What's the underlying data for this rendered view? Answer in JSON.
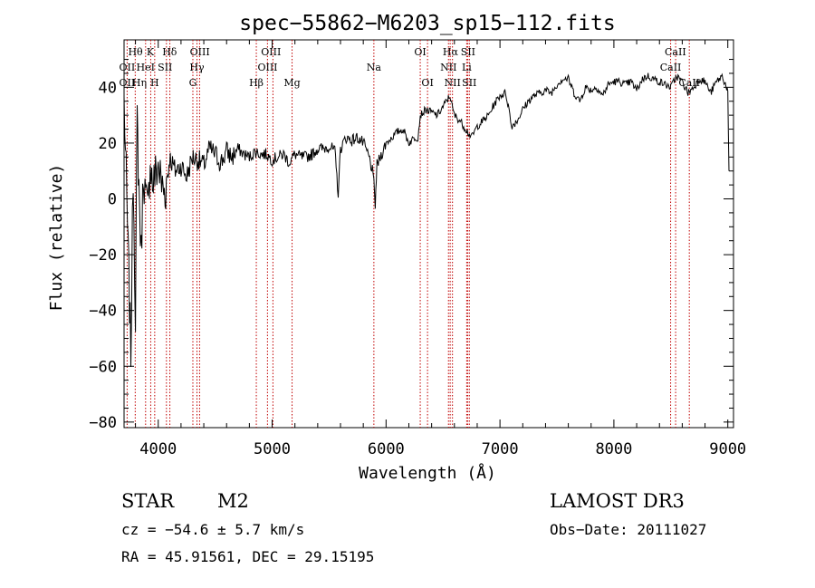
{
  "chart_data": {
    "type": "line",
    "title": "spec−55862−M6203_sp15−112.fits",
    "xlabel": "Wavelength (Å)",
    "ylabel": "Flux (relative)",
    "xlim": [
      3700,
      9050
    ],
    "ylim": [
      -82,
      57
    ],
    "xticks": [
      4000,
      5000,
      6000,
      7000,
      8000,
      9000
    ],
    "yticks": [
      -80,
      -60,
      -40,
      -20,
      0,
      20,
      40
    ],
    "grid": false,
    "series": [
      {
        "color": "#000000",
        "x": [
          3700,
          3730,
          3760,
          3780,
          3800,
          3815,
          3830,
          3850,
          3870,
          3890,
          3910,
          3930,
          3950,
          3970,
          4000,
          4030,
          4060,
          4100,
          4150,
          4200,
          4250,
          4300,
          4350,
          4400,
          4450,
          4500,
          4550,
          4600,
          4650,
          4700,
          4750,
          4800,
          4850,
          4900,
          4950,
          5000,
          5050,
          5100,
          5150,
          5200,
          5250,
          5300,
          5350,
          5400,
          5450,
          5500,
          5550,
          5580,
          5600,
          5650,
          5700,
          5750,
          5800,
          5850,
          5880,
          5893,
          5905,
          5920,
          5950,
          6000,
          6050,
          6100,
          6150,
          6200,
          6250,
          6280,
          6300,
          6350,
          6400,
          6450,
          6500,
          6530,
          6563,
          6580,
          6600,
          6650,
          6700,
          6750,
          6800,
          6850,
          6900,
          6950,
          7000,
          7050,
          7080,
          7100,
          7150,
          7200,
          7250,
          7300,
          7350,
          7400,
          7450,
          7500,
          7550,
          7600,
          7650,
          7700,
          7750,
          7800,
          7850,
          7900,
          7950,
          8000,
          8050,
          8100,
          8150,
          8200,
          8250,
          8300,
          8350,
          8400,
          8450,
          8500,
          8550,
          8600,
          8650,
          8700,
          8750,
          8800,
          8850,
          8900,
          8950,
          8990,
          9000,
          9010
        ],
        "y": [
          35,
          -10,
          -55,
          10,
          -40,
          28,
          5,
          -20,
          10,
          0,
          -5,
          15,
          5,
          8,
          12,
          5,
          2,
          15,
          10,
          12,
          8,
          15,
          14,
          12,
          18,
          16,
          13,
          17,
          15,
          18,
          16,
          15,
          17,
          16,
          16,
          14,
          15,
          16,
          13,
          16,
          15,
          15,
          16,
          18,
          18,
          19,
          17,
          2,
          18,
          22,
          21,
          22,
          20,
          15,
          10,
          5,
          -2,
          12,
          15,
          20,
          22,
          24,
          25,
          20,
          22,
          22,
          30,
          32,
          31,
          30,
          33,
          35,
          37,
          33,
          30,
          28,
          25,
          22,
          26,
          28,
          30,
          34,
          37,
          38,
          32,
          26,
          28,
          32,
          35,
          37,
          38,
          39,
          38,
          41,
          43,
          43,
          38,
          35,
          40,
          39,
          40,
          37,
          41,
          42,
          42,
          41,
          42,
          39,
          43,
          44,
          43,
          42,
          41,
          40,
          44,
          42,
          38,
          40,
          43,
          42,
          38,
          42,
          44,
          40,
          38,
          10
        ]
      }
    ],
    "lines": [
      {
        "name": "O II",
        "x": 3727
      },
      {
        "name": "Hθ",
        "x": 3798
      },
      {
        "name": "He I",
        "x": 3889
      },
      {
        "name": "K",
        "x": 3934
      },
      {
        "name": "H",
        "x": 3969
      },
      {
        "name": "S II",
        "x": 4072
      },
      {
        "name": "Hδ",
        "x": 4102
      },
      {
        "name": "G",
        "x": 4304
      },
      {
        "name": "Hγ",
        "x": 4340
      },
      {
        "name": "O III",
        "x": 4363
      },
      {
        "name": "Hβ",
        "x": 4861
      },
      {
        "name": "O III",
        "x": 4959
      },
      {
        "name": "O III",
        "x": 5007
      },
      {
        "name": "Mg",
        "x": 5175
      },
      {
        "name": "Na",
        "x": 5893
      },
      {
        "name": "O I",
        "x": 6300
      },
      {
        "name": "O I",
        "x": 6364
      },
      {
        "name": "N II",
        "x": 6548
      },
      {
        "name": "Hα",
        "x": 6563
      },
      {
        "name": "N II",
        "x": 6583
      },
      {
        "name": "Li",
        "x": 6708
      },
      {
        "name": "S II",
        "x": 6716
      },
      {
        "name": "S II",
        "x": 6731
      },
      {
        "name": "Ca II",
        "x": 8498
      },
      {
        "name": "Ca II",
        "x": 8542
      },
      {
        "name": "Ca II",
        "x": 8662
      }
    ],
    "line_labels": [
      {
        "text": "Hθ",
        "x": 3800,
        "row": 1
      },
      {
        "text": "K",
        "x": 3930,
        "row": 1
      },
      {
        "text": "Hδ",
        "x": 4100,
        "row": 1
      },
      {
        "text": "OIII",
        "x": 4365,
        "row": 1
      },
      {
        "text": "OIII",
        "x": 4990,
        "row": 1
      },
      {
        "text": "OI",
        "x": 6300,
        "row": 1
      },
      {
        "text": "Hα",
        "x": 6565,
        "row": 1
      },
      {
        "text": "SII",
        "x": 6720,
        "row": 1
      },
      {
        "text": "CaII",
        "x": 8540,
        "row": 1
      },
      {
        "text": "OII",
        "x": 3727,
        "row": 2
      },
      {
        "text": "HeI",
        "x": 3889,
        "row": 2
      },
      {
        "text": "SII",
        "x": 4060,
        "row": 2
      },
      {
        "text": "Hγ",
        "x": 4340,
        "row": 2
      },
      {
        "text": "OIII",
        "x": 4960,
        "row": 2
      },
      {
        "text": "Na",
        "x": 5893,
        "row": 2
      },
      {
        "text": "NII",
        "x": 6548,
        "row": 2
      },
      {
        "text": "Li",
        "x": 6708,
        "row": 2
      },
      {
        "text": "CaII",
        "x": 8498,
        "row": 2
      },
      {
        "text": "OII",
        "x": 3727,
        "row": 3
      },
      {
        "text": "Hη",
        "x": 3835,
        "row": 3
      },
      {
        "text": "H",
        "x": 3969,
        "row": 3
      },
      {
        "text": "G",
        "x": 4304,
        "row": 3
      },
      {
        "text": "Hβ",
        "x": 4861,
        "row": 3
      },
      {
        "text": "Mg",
        "x": 5175,
        "row": 3
      },
      {
        "text": "OI",
        "x": 6364,
        "row": 3
      },
      {
        "text": "NII",
        "x": 6583,
        "row": 3
      },
      {
        "text": "SII",
        "x": 6731,
        "row": 3
      },
      {
        "text": "CaII",
        "x": 8662,
        "row": 3
      }
    ]
  },
  "info": {
    "object_class": "STAR",
    "subclass": "M2",
    "survey": "LAMOST DR3",
    "cz": "cz = −54.6 ± 5.7 km/s",
    "obs_date": "Obs−Date: 20111027",
    "radec": "RA =  45.91561, DEC =  29.15195"
  }
}
